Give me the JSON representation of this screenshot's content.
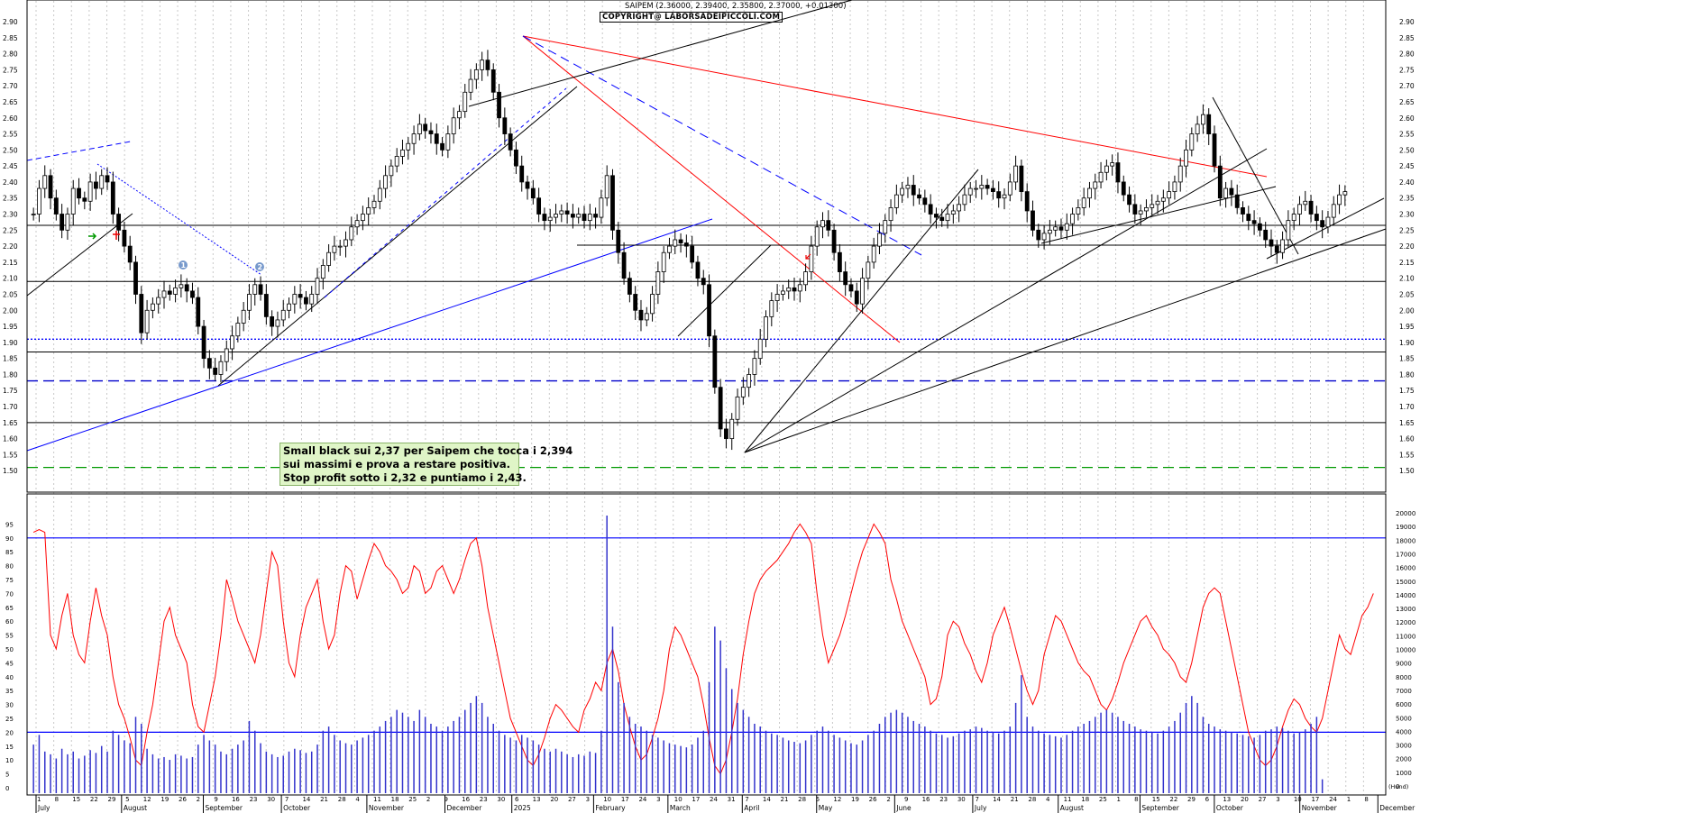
{
  "header": {
    "title": "SAIPEM (2.36000, 2.39400, 2.35800, 2.37000, +0.01300)",
    "copyright": "COPYRIGHT@ LABORSADEIPICCOLI.COM"
  },
  "note": {
    "line1": "Small black sui 2,37 per Saipem che tocca i 2,394",
    "line2": "sui massimi e prova a restare positiva.",
    "line3": "Stop profit sotto i 2,32 e puntiamo i 2,43."
  },
  "chart_data": {
    "type": "candlestick",
    "price_axis": {
      "ylim": [
        1.45,
        2.9
      ],
      "ticks": [
        "2.90",
        "2.85",
        "2.80",
        "2.75",
        "2.70",
        "2.65",
        "2.60",
        "2.55",
        "2.50",
        "2.45",
        "2.40",
        "2.35",
        "2.30",
        "2.25",
        "2.20",
        "2.15",
        "2.10",
        "2.05",
        "2.00",
        "1.95",
        "1.90",
        "1.85",
        "1.80",
        "1.75",
        "1.70",
        "1.65",
        "1.60",
        "1.55",
        "1.50"
      ]
    },
    "oscillator_axis": {
      "ylim": [
        0,
        100
      ],
      "ticks": [
        "95",
        "90",
        "85",
        "80",
        "75",
        "70",
        "65",
        "60",
        "55",
        "50",
        "45",
        "40",
        "35",
        "30",
        "25",
        "20",
        "15",
        "10",
        "5",
        "0"
      ]
    },
    "volume_axis": {
      "ticks": [
        "20000",
        "19000",
        "18000",
        "17000",
        "16000",
        "15000",
        "14000",
        "13000",
        "12000",
        "11000",
        "10000",
        "9000",
        "8000",
        "7000",
        "6000",
        "5000",
        "4000",
        "3000",
        "2000",
        "1000",
        "0"
      ],
      "label": "(Hund)"
    },
    "months": [
      {
        "label": "July",
        "x": 0
      },
      {
        "label": "August",
        "x": 23
      },
      {
        "label": "September",
        "x": 45
      },
      {
        "label": "October",
        "x": 66
      },
      {
        "label": "November",
        "x": 89
      },
      {
        "label": "December",
        "x": 110
      },
      {
        "label": "2025",
        "x": 128
      },
      {
        "label": "February",
        "x": 150
      },
      {
        "label": "March",
        "x": 170
      },
      {
        "label": "April",
        "x": 190
      },
      {
        "label": "May",
        "x": 210
      },
      {
        "label": "June",
        "x": 231
      },
      {
        "label": "July",
        "x": 252
      },
      {
        "label": "August",
        "x": 275
      },
      {
        "label": "September",
        "x": 297
      },
      {
        "label": "October",
        "x": 317
      },
      {
        "label": "November",
        "x": 340
      },
      {
        "label": "December",
        "x": 361
      }
    ],
    "day_ticks": [
      "1",
      "8",
      "15",
      "22",
      "29",
      "5",
      "12",
      "19",
      "26",
      "2",
      "9",
      "16",
      "23",
      "30",
      "7",
      "14",
      "21",
      "28",
      "4",
      "11",
      "18",
      "25",
      "2",
      "9",
      "16",
      "23",
      "30",
      "6",
      "13",
      "20",
      "27",
      "3",
      "10",
      "17",
      "24",
      "3",
      "10",
      "17",
      "24",
      "31",
      "7",
      "14",
      "21",
      "28",
      "5",
      "12",
      "19",
      "26",
      "2",
      "9",
      "16",
      "23",
      "30",
      "7",
      "14",
      "21",
      "28",
      "4",
      "11",
      "18",
      "25",
      "1",
      "8",
      "15",
      "22",
      "29",
      "6",
      "13",
      "20",
      "27",
      "3",
      "10",
      "17",
      "24",
      "1",
      "8"
    ],
    "closes": [
      2.3,
      2.38,
      2.42,
      2.35,
      2.3,
      2.25,
      2.3,
      2.38,
      2.35,
      2.34,
      2.4,
      2.38,
      2.42,
      2.4,
      2.3,
      2.25,
      2.2,
      2.15,
      2.05,
      1.93,
      2.0,
      2.02,
      2.04,
      2.06,
      2.05,
      2.07,
      2.08,
      2.06,
      2.04,
      1.95,
      1.85,
      1.82,
      1.8,
      1.84,
      1.88,
      1.92,
      1.96,
      2.0,
      2.05,
      2.08,
      2.05,
      1.98,
      1.95,
      1.97,
      2.0,
      2.02,
      2.05,
      2.04,
      2.02,
      2.05,
      2.1,
      2.14,
      2.18,
      2.2,
      2.2,
      2.22,
      2.26,
      2.28,
      2.3,
      2.32,
      2.34,
      2.38,
      2.42,
      2.45,
      2.48,
      2.5,
      2.52,
      2.55,
      2.58,
      2.56,
      2.55,
      2.52,
      2.5,
      2.55,
      2.6,
      2.62,
      2.68,
      2.72,
      2.75,
      2.78,
      2.75,
      2.68,
      2.6,
      2.55,
      2.5,
      2.45,
      2.4,
      2.38,
      2.35,
      2.3,
      2.28,
      2.29,
      2.3,
      2.31,
      2.3,
      2.29,
      2.3,
      2.28,
      2.3,
      2.29,
      2.35,
      2.42,
      2.25,
      2.18,
      2.1,
      2.05,
      2.0,
      1.97,
      1.99,
      2.05,
      2.12,
      2.18,
      2.2,
      2.22,
      2.21,
      2.2,
      2.15,
      2.1,
      2.08,
      1.92,
      1.76,
      1.63,
      1.6,
      1.66,
      1.73,
      1.76,
      1.8,
      1.85,
      1.91,
      1.98,
      2.03,
      2.05,
      2.06,
      2.07,
      2.06,
      2.08,
      2.12,
      2.2,
      2.26,
      2.28,
      2.25,
      2.18,
      2.12,
      2.08,
      2.06,
      2.02,
      2.1,
      2.15,
      2.2,
      2.24,
      2.28,
      2.32,
      2.36,
      2.38,
      2.39,
      2.36,
      2.35,
      2.33,
      2.3,
      2.29,
      2.28,
      2.3,
      2.31,
      2.33,
      2.36,
      2.38,
      2.38,
      2.39,
      2.38,
      2.37,
      2.35,
      2.36,
      2.4,
      2.45,
      2.37,
      2.31,
      2.25,
      2.22,
      2.24,
      2.25,
      2.26,
      2.25,
      2.27,
      2.3,
      2.32,
      2.35,
      2.38,
      2.4,
      2.43,
      2.45,
      2.46,
      2.4,
      2.36,
      2.33,
      2.3,
      2.31,
      2.32,
      2.33,
      2.34,
      2.35,
      2.37,
      2.4,
      2.45,
      2.5,
      2.55,
      2.58,
      2.61,
      2.55,
      2.45,
      2.35,
      2.38,
      2.36,
      2.32,
      2.3,
      2.28,
      2.27,
      2.25,
      2.22,
      2.2,
      2.18,
      2.22,
      2.28,
      2.3,
      2.33,
      2.34,
      2.3,
      2.28,
      2.26,
      2.29,
      2.33,
      2.36,
      2.37
    ],
    "oscillator": [
      92,
      93,
      92,
      55,
      50,
      62,
      70,
      55,
      48,
      45,
      60,
      72,
      62,
      55,
      40,
      30,
      25,
      18,
      10,
      8,
      20,
      30,
      45,
      60,
      65,
      55,
      50,
      45,
      30,
      22,
      20,
      30,
      40,
      55,
      75,
      68,
      60,
      55,
      50,
      45,
      55,
      70,
      85,
      80,
      60,
      45,
      40,
      55,
      65,
      70,
      75,
      60,
      50,
      55,
      70,
      80,
      78,
      68,
      75,
      82,
      88,
      85,
      80,
      78,
      75,
      70,
      72,
      80,
      78,
      70,
      72,
      78,
      80,
      75,
      70,
      75,
      82,
      88,
      90,
      80,
      65,
      55,
      45,
      35,
      25,
      20,
      15,
      10,
      8,
      12,
      18,
      25,
      30,
      28,
      25,
      22,
      20,
      28,
      32,
      38,
      35,
      45,
      50,
      42,
      30,
      22,
      15,
      10,
      12,
      18,
      25,
      35,
      50,
      58,
      55,
      50,
      45,
      40,
      30,
      18,
      8,
      5,
      10,
      20,
      32,
      48,
      60,
      70,
      75,
      78,
      80,
      82,
      85,
      88,
      92,
      95,
      92,
      88,
      70,
      55,
      45,
      50,
      55,
      62,
      70,
      78,
      85,
      90,
      95,
      92,
      88,
      75,
      68,
      60,
      55,
      50,
      45,
      40,
      30,
      32,
      40,
      55,
      60,
      58,
      52,
      48,
      42,
      38,
      45,
      55,
      60,
      65,
      58,
      50,
      42,
      35,
      30,
      35,
      48,
      55,
      62,
      60,
      55,
      50,
      45,
      42,
      40,
      35,
      30,
      28,
      32,
      38,
      45,
      50,
      55,
      60,
      62,
      58,
      55,
      50,
      48,
      45,
      40,
      38,
      45,
      55,
      65,
      70,
      72,
      70,
      60,
      50,
      40,
      30,
      20,
      15,
      10,
      8,
      10,
      15,
      22,
      28,
      32,
      30,
      25,
      22,
      20,
      25,
      35,
      45,
      55,
      50,
      48,
      55,
      62,
      65,
      70
    ],
    "volume": [
      3500,
      4200,
      3000,
      2800,
      2500,
      3200,
      2800,
      3000,
      2500,
      2700,
      3100,
      2900,
      3400,
      3000,
      4500,
      4200,
      3800,
      3600,
      5500,
      5000,
      3200,
      2800,
      2500,
      2600,
      2400,
      2800,
      2700,
      2500,
      2600,
      3500,
      4200,
      3800,
      3500,
      3000,
      2800,
      3200,
      3500,
      3800,
      5200,
      4500,
      3600,
      3000,
      2800,
      2600,
      2700,
      3000,
      3200,
      3100,
      2900,
      3000,
      3500,
      4500,
      4800,
      4200,
      3800,
      3600,
      3500,
      3800,
      4000,
      4200,
      4500,
      4800,
      5200,
      5500,
      6000,
      5800,
      5500,
      5200,
      6000,
      5500,
      5000,
      4800,
      4500,
      4800,
      5200,
      5500,
      6000,
      6500,
      7000,
      6500,
      5500,
      5000,
      4500,
      4200,
      4000,
      3800,
      4200,
      4000,
      3800,
      3500,
      3200,
      3000,
      3200,
      3000,
      2800,
      2600,
      2800,
      2700,
      3000,
      2900,
      4500,
      20000,
      12000,
      8000,
      6500,
      5500,
      5000,
      4800,
      4500,
      4200,
      4000,
      3800,
      3600,
      3500,
      3400,
      3300,
      3500,
      4000,
      4500,
      8000,
      12000,
      11000,
      9000,
      7500,
      6500,
      6000,
      5500,
      5000,
      4800,
      4500,
      4300,
      4200,
      4000,
      3800,
      3700,
      3600,
      3800,
      4200,
      4500,
      4800,
      4500,
      4200,
      4000,
      3800,
      3600,
      3500,
      3800,
      4200,
      4500,
      5000,
      5500,
      5800,
      6000,
      5800,
      5500,
      5200,
      5000,
      4800,
      4500,
      4300,
      4200,
      4000,
      4100,
      4300,
      4500,
      4600,
      4800,
      4700,
      4500,
      4400,
      4300,
      4500,
      4800,
      6500,
      8500,
      5500,
      4800,
      4500,
      4300,
      4200,
      4100,
      4000,
      4200,
      4500,
      4800,
      5000,
      5200,
      5500,
      5800,
      6000,
      5800,
      5500,
      5200,
      5000,
      4800,
      4600,
      4500,
      4400,
      4300,
      4500,
      4800,
      5200,
      5800,
      6500,
      7000,
      6500,
      5500,
      5000,
      4800,
      4600,
      4500,
      4400,
      4300,
      4200,
      4100,
      4000,
      4200,
      4500,
      4600,
      4800,
      4700,
      4500,
      4300,
      4400,
      4600,
      5000,
      5500,
      1000
    ],
    "horizontal_levels": [
      {
        "value": 2.265,
        "color": "#000000",
        "style": "solid"
      },
      {
        "value": 2.09,
        "color": "#000000",
        "style": "solid"
      },
      {
        "value": 1.91,
        "color": "#0000ff",
        "style": "dotted"
      },
      {
        "value": 1.87,
        "color": "#000000",
        "style": "solid"
      },
      {
        "value": 1.78,
        "color": "#0000cc",
        "style": "dashed"
      },
      {
        "value": 1.65,
        "color": "#000000",
        "style": "solid"
      },
      {
        "value": 1.51,
        "color": "#009900",
        "style": "dashed"
      }
    ],
    "oscillator_levels": [
      {
        "value": 90,
        "color": "#0000ff"
      },
      {
        "value": 20,
        "color": "#0000ff"
      }
    ],
    "markers": [
      "1",
      "2"
    ],
    "colors": {
      "up_candle": "#ffffff",
      "down_candle": "#000000",
      "oscillator_line": "#ff0000",
      "volume_bars": "#3333cc",
      "trend_red": "#ff0000",
      "trend_blue": "#0000ff",
      "trend_black": "#000000"
    }
  }
}
